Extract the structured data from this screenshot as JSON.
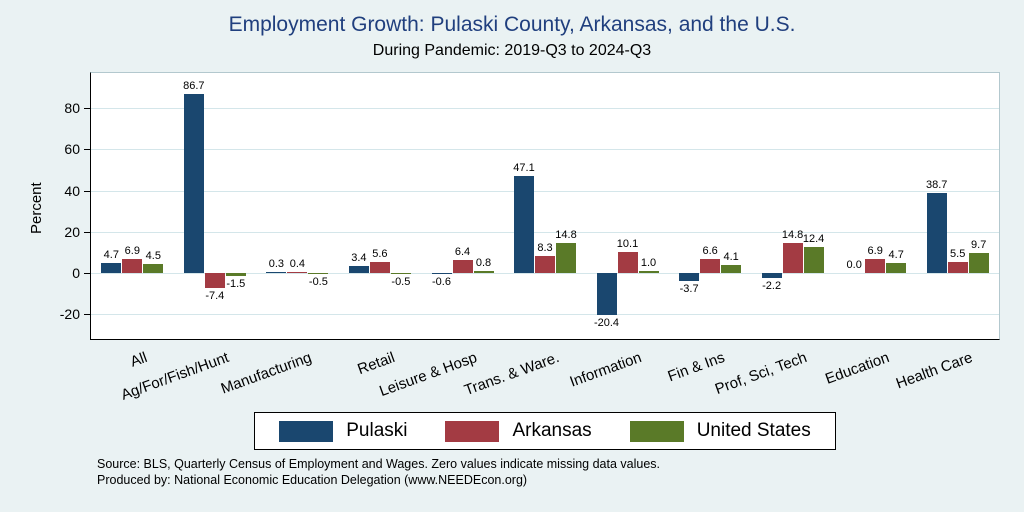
{
  "title": "Employment Growth: Pulaski County, Arkansas, and the U.S.",
  "subtitle": "During Pandemic: 2019-Q3 to 2024-Q3",
  "notes": [
    "Source: BLS, Quarterly Census of Employment and Wages. Zero values indicate missing data values.",
    "Produced by: National Economic Education Delegation (www.NEEDEcon.org)"
  ],
  "colors": {
    "background": "#eaf2f3",
    "plot_background": "#ffffff",
    "title": "#203f7e",
    "grid": "#d4e6ea",
    "pulaski": "#1a476f",
    "arkansas": "#a33b43",
    "united_states": "#5a7a28"
  },
  "chart_data": {
    "type": "bar",
    "title": "Employment Growth: Pulaski County, Arkansas, and the U.S.",
    "subtitle": "During Pandemic: 2019-Q3 to 2024-Q3",
    "xlabel": "",
    "ylabel": "Percent",
    "ylim": [
      -32,
      97
    ],
    "yticks": [
      -20,
      0,
      20,
      40,
      60,
      80
    ],
    "grid": true,
    "legend_position": "bottom",
    "categories": [
      "All",
      "Ag/For/Fish/Hunt",
      "Manufacturing",
      "Retail",
      "Leisure & Hosp",
      "Trans. & Ware.",
      "Information",
      "Fin & Ins",
      "Prof, Sci, Tech",
      "Education",
      "Health Care"
    ],
    "series": [
      {
        "name": "Pulaski",
        "color": "#1a476f",
        "values": [
          4.7,
          86.7,
          0.3,
          3.4,
          -0.6,
          47.1,
          -20.4,
          -3.7,
          -2.2,
          0.0,
          38.7
        ]
      },
      {
        "name": "Arkansas",
        "color": "#a33b43",
        "values": [
          6.9,
          -7.4,
          0.4,
          5.6,
          6.4,
          8.3,
          10.1,
          6.6,
          14.8,
          6.9,
          5.5
        ]
      },
      {
        "name": "United States",
        "color": "#5a7a28",
        "values": [
          4.5,
          -1.5,
          -0.5,
          -0.5,
          0.8,
          14.8,
          1.0,
          4.1,
          12.4,
          4.7,
          9.7
        ]
      }
    ]
  }
}
